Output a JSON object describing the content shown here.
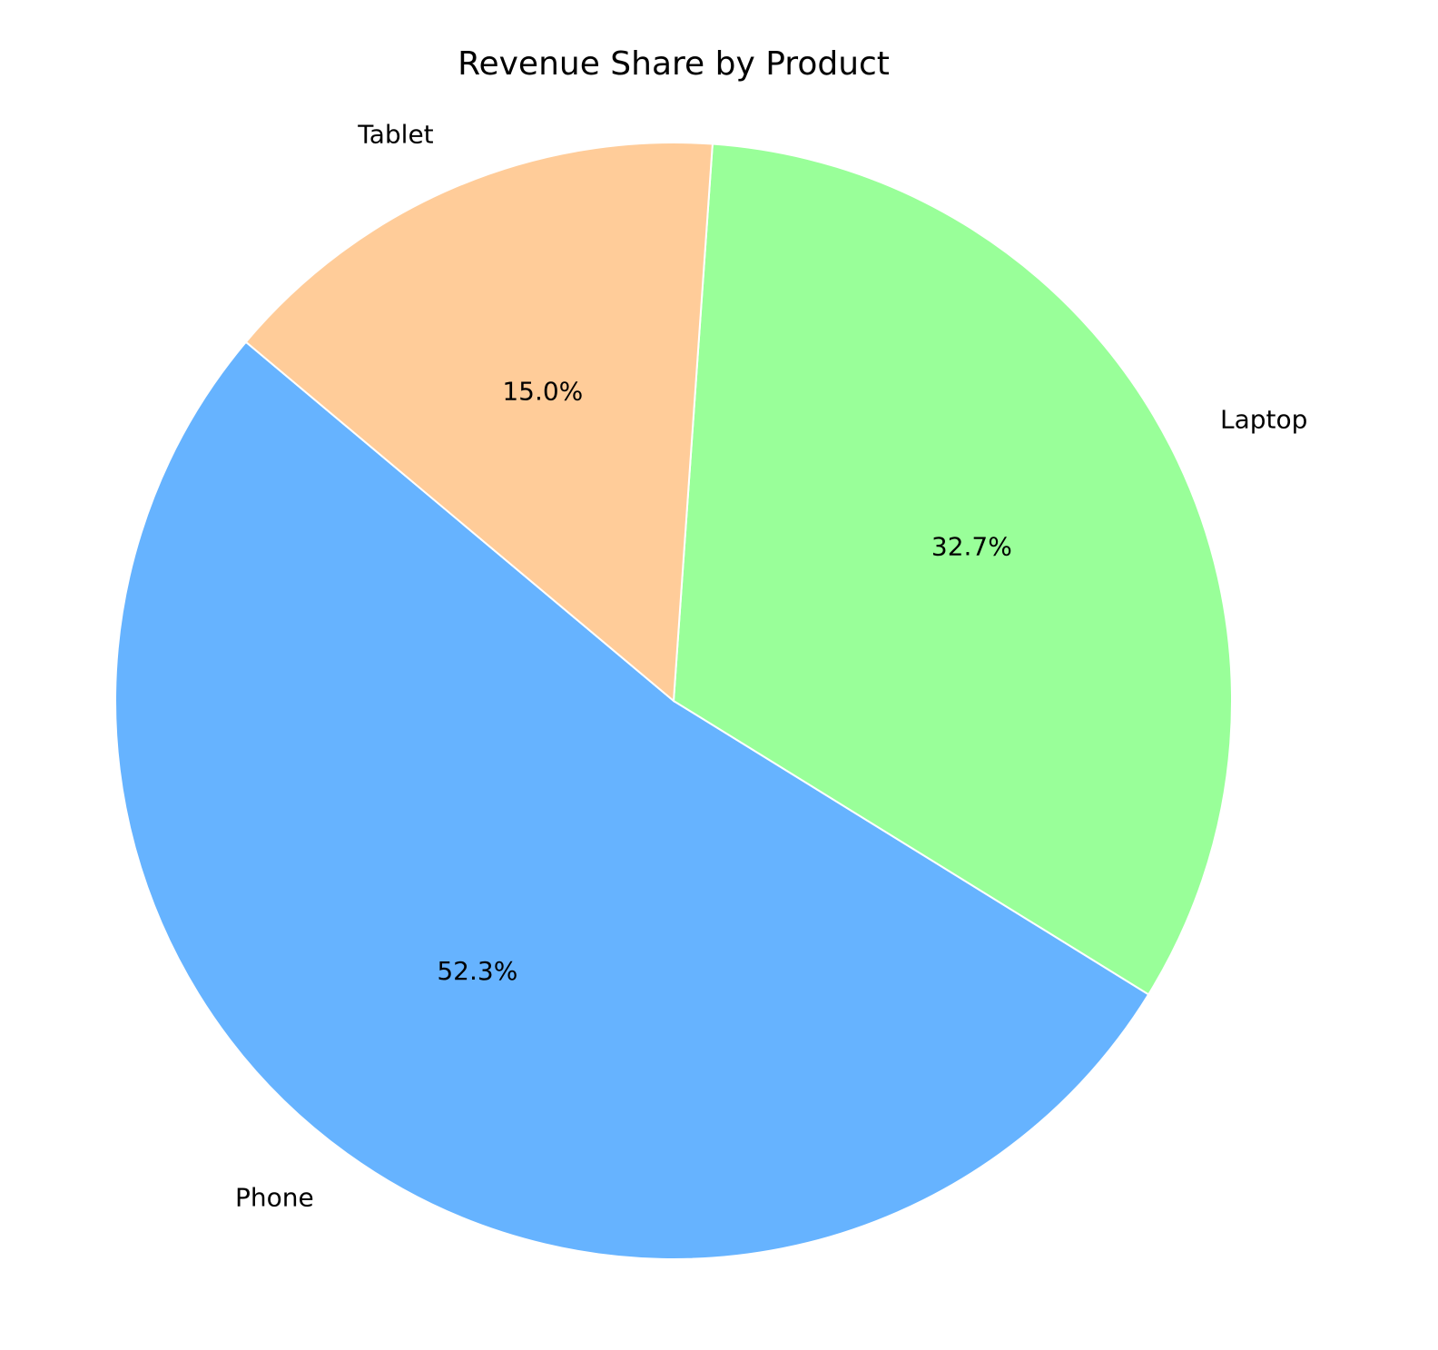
{
  "chart_data": {
    "type": "pie",
    "title": "Revenue Share by Product",
    "labels": [
      "Phone",
      "Laptop",
      "Tablet"
    ],
    "values": [
      52.3,
      32.7,
      15.0
    ],
    "pct_labels": [
      "52.3%",
      "32.7%",
      "15.0%"
    ],
    "colors": [
      "#66b3ff",
      "#99ff99",
      "#ffcc99"
    ],
    "start_angle_deg": 140,
    "direction": "counterclockwise",
    "legend": "none"
  }
}
